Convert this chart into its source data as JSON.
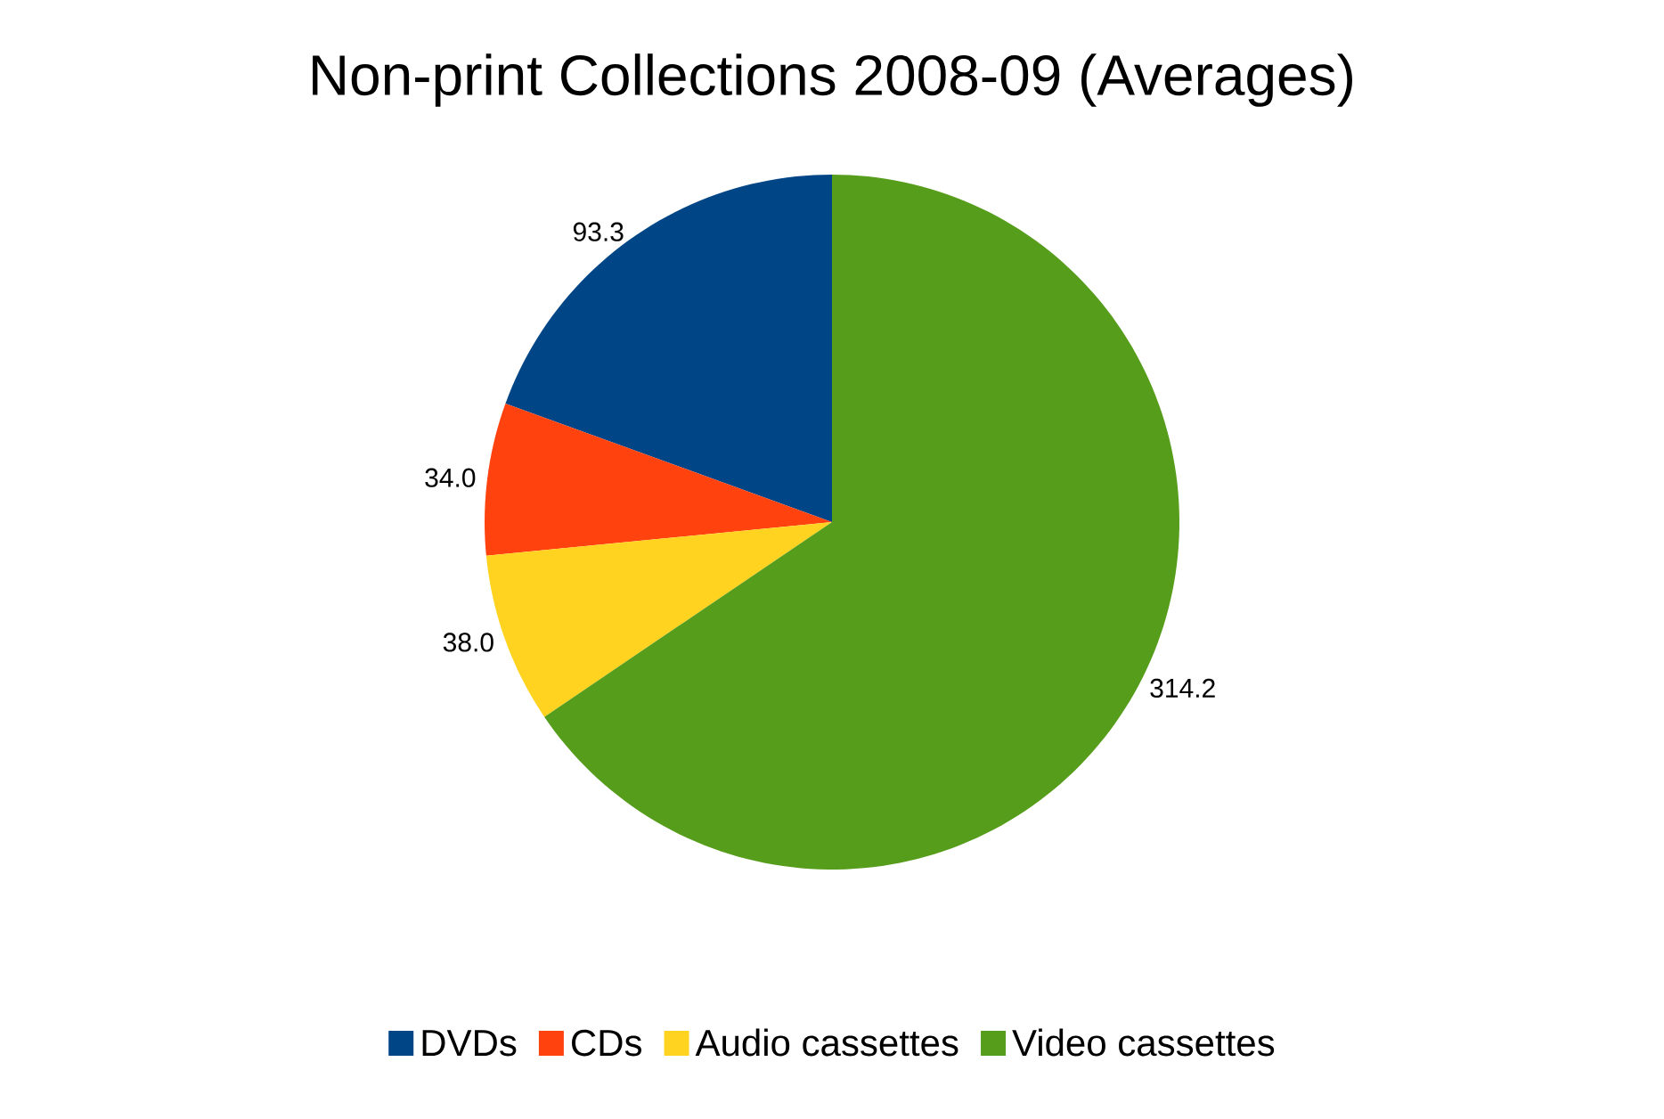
{
  "chart_data": {
    "type": "pie",
    "title": "Non-print Collections 2008-09 (Averages)",
    "categories": [
      "DVDs",
      "CDs",
      "Audio cassettes",
      "Video cassettes"
    ],
    "values": [
      93.3,
      34.0,
      38.0,
      314.2
    ],
    "value_labels": [
      "93.3",
      "34.0",
      "38.0",
      "314.2"
    ],
    "colors": [
      "#004586",
      "#ff420e",
      "#ffd320",
      "#579d1c"
    ],
    "legend": "bottom"
  }
}
